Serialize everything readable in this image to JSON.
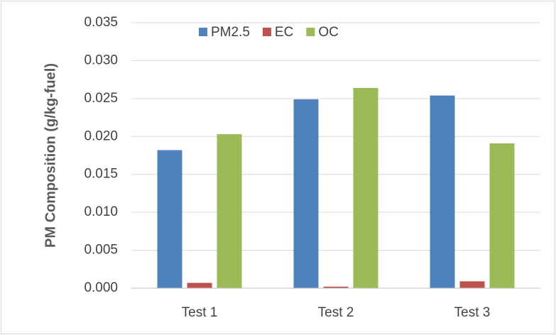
{
  "chart_data": {
    "type": "bar",
    "y_label": "PM Composition (g/kg-fuel)",
    "categories": [
      "Test 1",
      "Test 2",
      "Test 3"
    ],
    "series": [
      {
        "name": "PM2.5",
        "color": "#4f81bd",
        "values": [
          0.0182,
          0.0249,
          0.0254
        ]
      },
      {
        "name": "EC",
        "color": "#c0504d",
        "values": [
          0.0007,
          0.0002,
          0.0009
        ]
      },
      {
        "name": "OC",
        "color": "#9bbb59",
        "values": [
          0.0203,
          0.0264,
          0.0191
        ]
      }
    ],
    "ylim": [
      0,
      0.035
    ],
    "yticks": [
      {
        "value": 0,
        "label": "0.000"
      },
      {
        "value": 0.005,
        "label": "0.005"
      },
      {
        "value": 0.01,
        "label": "0.010"
      },
      {
        "value": 0.015,
        "label": "0.015"
      },
      {
        "value": 0.02,
        "label": "0.020"
      },
      {
        "value": 0.025,
        "label": "0.025"
      },
      {
        "value": 0.03,
        "label": "0.030"
      },
      {
        "value": 0.035,
        "label": "0.035"
      }
    ],
    "grid": true,
    "legend": "top"
  }
}
